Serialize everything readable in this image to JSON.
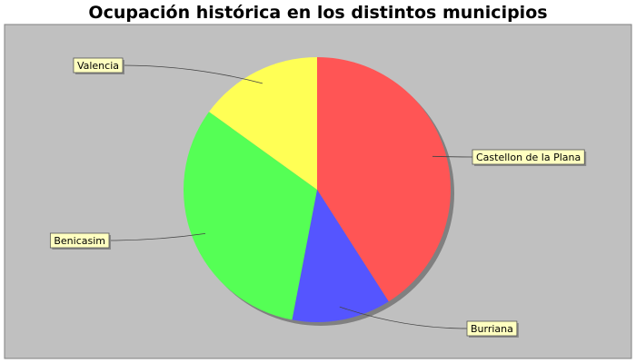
{
  "chart_data": {
    "type": "pie",
    "title": "Ocupación histórica en los distintos municipios",
    "slices": [
      {
        "label": "Castellon de la Plana",
        "value": 41,
        "color": "#ff5555"
      },
      {
        "label": "Burriana",
        "value": 12,
        "color": "#5555ff"
      },
      {
        "label": "Benicasim",
        "value": 32,
        "color": "#55ff55"
      },
      {
        "label": "Valencia",
        "value": 15,
        "color": "#ffff55"
      }
    ],
    "legend": "none",
    "label_style": "callout boxes with leader lines",
    "background_color": "#c0c0c0",
    "label_box_color": "#ffffc0"
  }
}
